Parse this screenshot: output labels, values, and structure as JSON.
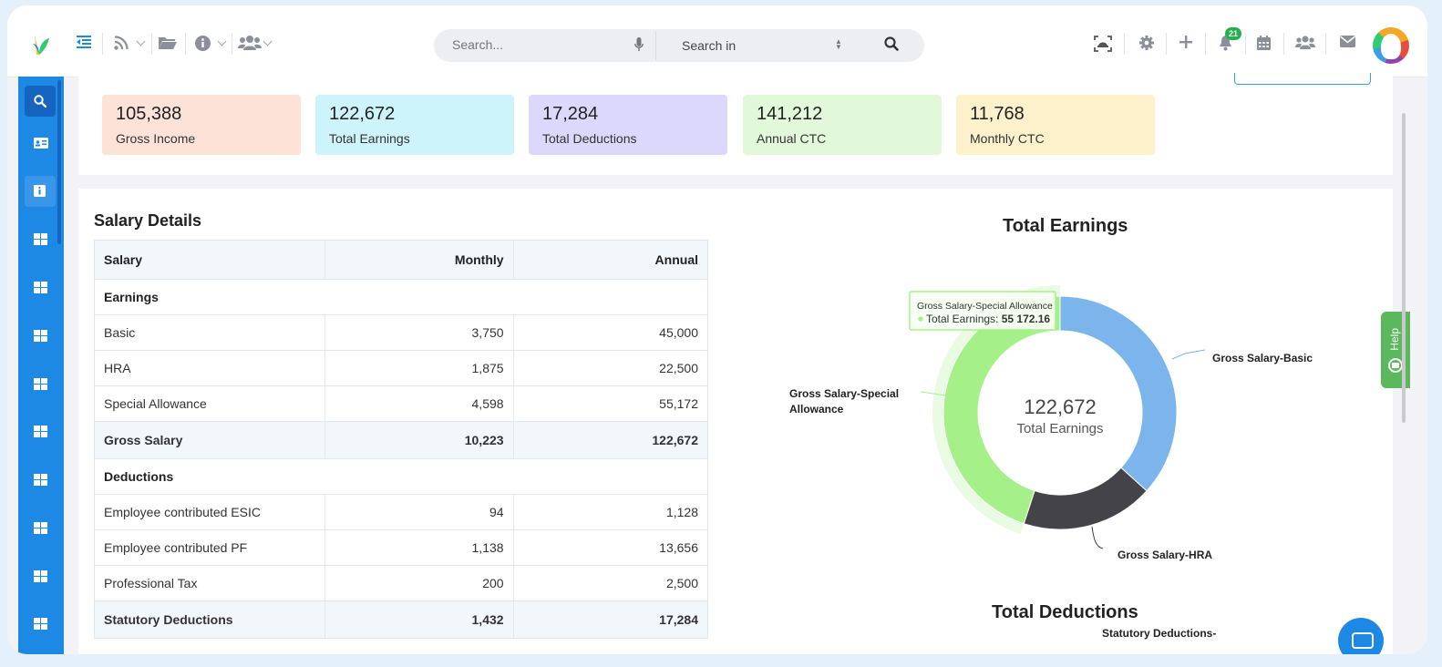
{
  "topbar": {
    "search_placeholder": "Search...",
    "search_in": "Search in",
    "notification_count": "21"
  },
  "summary_cards": [
    {
      "value": "105,388",
      "label": "Gross Income",
      "color": "#fde3d7"
    },
    {
      "value": "122,672",
      "label": "Total Earnings",
      "color": "#cdf3fb"
    },
    {
      "value": "17,284",
      "label": "Total Deductions",
      "color": "#dcd8fb"
    },
    {
      "value": "141,212",
      "label": "Annual CTC",
      "color": "#e1f9da"
    },
    {
      "value": "11,768",
      "label": "Monthly CTC",
      "color": "#fdf1cc"
    }
  ],
  "salary": {
    "title": "Salary Details",
    "headers": [
      "Salary",
      "Monthly",
      "Annual"
    ],
    "earnings_label": "Earnings",
    "earnings": [
      {
        "name": "Basic",
        "monthly": "3,750",
        "annual": "45,000"
      },
      {
        "name": "HRA",
        "monthly": "1,875",
        "annual": "22,500"
      },
      {
        "name": "Special Allowance",
        "monthly": "4,598",
        "annual": "55,172"
      }
    ],
    "gross": {
      "name": "Gross Salary",
      "monthly": "10,223",
      "annual": "122,672"
    },
    "deductions_label": "Deductions",
    "deductions": [
      {
        "name": "Employee contributed ESIC",
        "monthly": "94",
        "annual": "1,128"
      },
      {
        "name": "Employee contributed PF",
        "monthly": "1,138",
        "annual": "13,656"
      },
      {
        "name": "Professional Tax",
        "monthly": "200",
        "annual": "2,500"
      }
    ],
    "statutory": {
      "name": "Statutory Deductions",
      "monthly": "1,432",
      "annual": "17,284"
    }
  },
  "chart_data": {
    "type": "pie",
    "title": "Total Earnings",
    "center_value": "122,672",
    "center_label": "Total Earnings",
    "slices": [
      {
        "label": "Gross Salary-Basic",
        "value": 45000,
        "color": "#7cb5ec"
      },
      {
        "label": "Gross Salary-HRA",
        "value": 22500,
        "color": "#434348"
      },
      {
        "label": "Gross Salary-Special Allowance",
        "value": 55172.16,
        "color": "#a6f08a"
      }
    ],
    "labels_display": {
      "basic": "Gross Salary-Basic",
      "hra": "Gross Salary-HRA",
      "special_line1": "Gross Salary-Special",
      "special_line2": "Allowance"
    },
    "tooltip": {
      "title": "Gross Salary-Special Allowance",
      "series": "Total Earnings",
      "value": "55 172.16"
    }
  },
  "chart2": {
    "title": "Total Deductions",
    "partial_label": "Statutory Deductions-"
  },
  "help_label": "Help"
}
